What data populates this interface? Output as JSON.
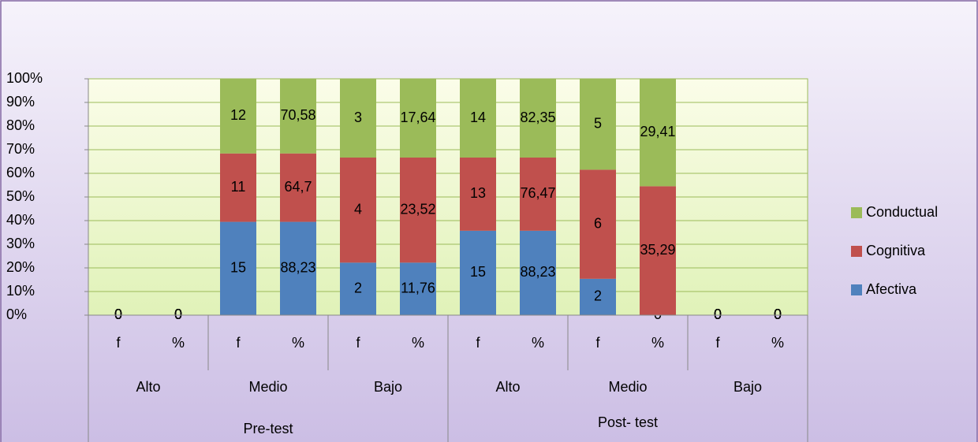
{
  "chart_data": {
    "type": "stacked_percent_bar",
    "categories": [
      "f",
      "%",
      "f",
      "%",
      "f",
      "%",
      "f",
      "%",
      "f",
      "%",
      "f",
      "%"
    ],
    "groups": [
      "Alto",
      "Medio",
      "Bajo",
      "Alto",
      "Medio",
      "Bajo"
    ],
    "super_groups": [
      "Pre-test",
      "Post- test"
    ],
    "series": [
      {
        "name": "Afectiva",
        "color": "#4f81bd",
        "values": [
          0,
          0,
          15,
          88.23,
          2,
          11.76,
          15,
          88.23,
          2,
          0,
          0,
          0
        ],
        "value_labels": [
          "0",
          "0",
          "15",
          "88,23",
          "2",
          "11,76",
          "15",
          "88,23",
          "2",
          "0",
          "0",
          "0"
        ]
      },
      {
        "name": "Cognitiva",
        "color": "#c0504d",
        "values": [
          0,
          0,
          11,
          64.7,
          4,
          23.52,
          13,
          76.47,
          6,
          35.29,
          0,
          0
        ],
        "value_labels": [
          "0",
          "0",
          "11",
          "64,7",
          "4",
          "23,52",
          "13",
          "76,47",
          "6",
          "35,29",
          "0",
          "0"
        ]
      },
      {
        "name": "Conductual",
        "color": "#9bbb59",
        "values": [
          0,
          0,
          12,
          70.58,
          3,
          17.64,
          14,
          82.35,
          5,
          29.41,
          0,
          0
        ],
        "value_labels": [
          "0",
          "0",
          "12",
          "70,58",
          "3",
          "17,64",
          "14",
          "82,35",
          "5",
          "29,41",
          "0",
          "0"
        ]
      }
    ],
    "ylim": [
      0,
      100
    ],
    "yticks": [
      {
        "value": 0,
        "label": "0%"
      },
      {
        "value": 10,
        "label": "10%"
      },
      {
        "value": 20,
        "label": "20%"
      },
      {
        "value": 30,
        "label": "30%"
      },
      {
        "value": 40,
        "label": "40%"
      },
      {
        "value": 50,
        "label": "50%"
      },
      {
        "value": 60,
        "label": "60%"
      },
      {
        "value": 70,
        "label": "70%"
      },
      {
        "value": 80,
        "label": "80%"
      },
      {
        "value": 90,
        "label": "90%"
      },
      {
        "value": 100,
        "label": "100%"
      }
    ],
    "grid": true,
    "legend": "right"
  }
}
